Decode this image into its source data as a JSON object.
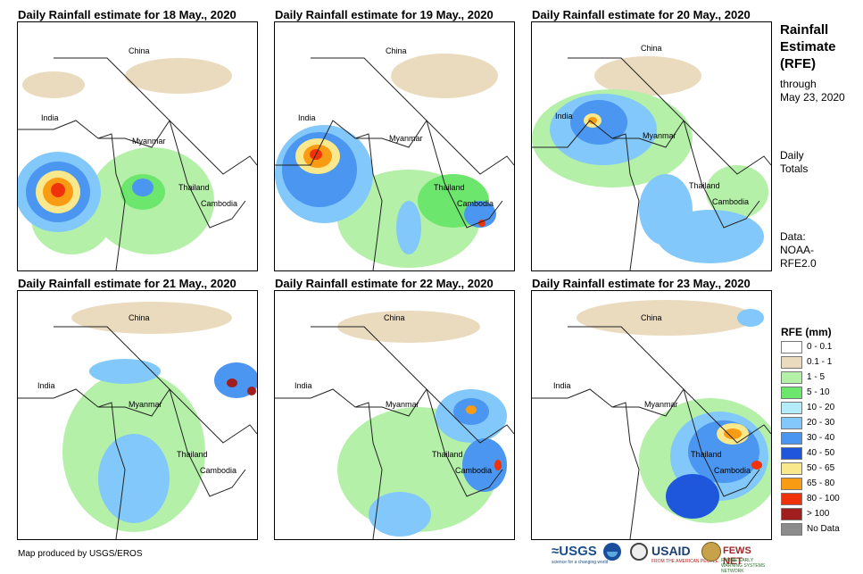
{
  "panels": [
    {
      "title": "Daily Rainfall estimate for 18 May., 2020"
    },
    {
      "title": "Daily Rainfall estimate for 19 May., 2020"
    },
    {
      "title": "Daily Rainfall estimate for 20 May., 2020"
    },
    {
      "title": "Daily Rainfall estimate for 21 May., 2020"
    },
    {
      "title": "Daily Rainfall estimate for 22 May., 2020"
    },
    {
      "title": "Daily Rainfall estimate for 23 May., 2020"
    }
  ],
  "map_labels": {
    "china": "China",
    "india": "India",
    "myanmar": "Myanmar",
    "thailand": "Thailand",
    "cambodia": "Cambodia"
  },
  "sidebar": {
    "title_1": "Rainfall",
    "title_2": "Estimate",
    "title_3": "(RFE)",
    "through": "through",
    "date": "May 23, 2020",
    "daily": "Daily",
    "totals": "Totals",
    "data_label": "Data:",
    "source_1": "NOAA-",
    "source_2": "RFE2.0"
  },
  "legend": {
    "title": "RFE (mm)",
    "items": [
      {
        "label": "0 - 0.1",
        "color": "#ffffff"
      },
      {
        "label": "0.1 - 1",
        "color": "#eadbbe"
      },
      {
        "label": "1 - 5",
        "color": "#b4f0a8"
      },
      {
        "label": "5 - 10",
        "color": "#6ce66c"
      },
      {
        "label": "10 - 20",
        "color": "#b4ecfa"
      },
      {
        "label": "20 - 30",
        "color": "#82c8fa"
      },
      {
        "label": "30 - 40",
        "color": "#4a96f0"
      },
      {
        "label": "40 - 50",
        "color": "#1e56dc"
      },
      {
        "label": "50 - 65",
        "color": "#fae88c"
      },
      {
        "label": "65 - 80",
        "color": "#fa9b14"
      },
      {
        "label": "80 - 100",
        "color": "#f0320a"
      },
      {
        "label": "> 100",
        "color": "#a01e1e"
      },
      {
        "label": "No Data",
        "color": "#8c8c8c"
      }
    ]
  },
  "footer": {
    "credit": "Map produced by USGS/EROS"
  },
  "logos": {
    "usgs": "≈USGS",
    "usgs_tagline": "science for a changing world",
    "usaid": "USAID",
    "usaid_tagline": "FROM THE AMERICAN PEOPLE",
    "fews": "FEWS NET",
    "fews_tagline": "FAMINE EARLY WARNING SYSTEMS NETWORK"
  }
}
